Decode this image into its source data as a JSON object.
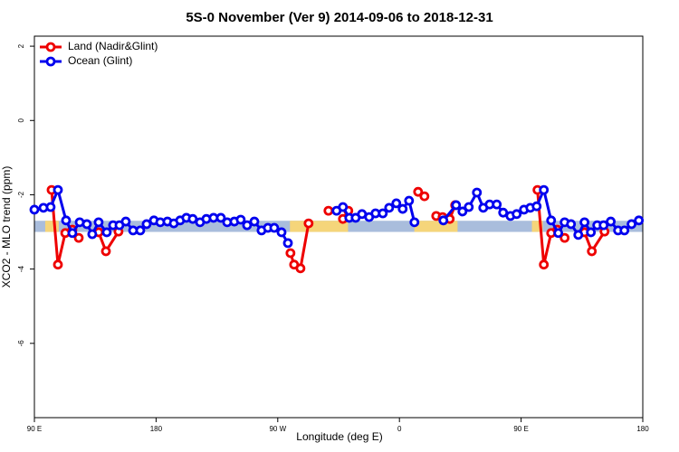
{
  "chart_data": {
    "type": "line",
    "title": "5S-0 November (Ver 9)   2014-09-06 to 2018-12-31",
    "x_label": "Longitude (deg E)",
    "y_label": "XCO2 - MLO trend (ppm)",
    "xlim": [
      90,
      540
    ],
    "xticks": [
      {
        "value": 90,
        "label": "90 E"
      },
      180,
      {
        "value": 270,
        "label": "90 W"
      },
      {
        "value": 360,
        "label": "0"
      },
      {
        "value": 450,
        "label": "90 E"
      },
      {
        "value": 540,
        "label": "180"
      }
    ],
    "ylim": [
      -8,
      2.27
    ],
    "yticks": [
      2,
      0,
      -2,
      -4,
      -6
    ],
    "legend": "top-left",
    "band": {
      "ylim": [
        -3.0,
        -2.7
      ],
      "color": "#a9bddc",
      "highlights": [
        {
          "xlim": [
            98,
            108
          ],
          "color": "#f5d57a"
        },
        {
          "xlim": [
            279,
            322
          ],
          "color": "#f5d57a"
        },
        {
          "xlim": [
            371,
            403
          ],
          "color": "#f5d57a"
        },
        {
          "xlim": [
            458,
            466
          ],
          "color": "#f5d57a"
        }
      ]
    },
    "series": [
      {
        "name": "Land (Nadir&Glint)",
        "color": "#ee0000",
        "x": [
          102.7,
          107.4,
          112.8,
          118.1,
          122.8,
          null,
          137.5,
          142.9,
          152.2,
          null,
          279.4,
          282.1,
          286.8,
          292.8,
          null,
          307.5,
          null,
          318.2,
          322.2,
          null,
          373.8,
          378.5,
          null,
          387.2,
          391.9,
          397.2,
          401.2,
          null,
          462.1,
          466.8,
          472.2,
          476.8,
          482.2,
          null,
          496.9,
          502.3,
          511.7
        ],
        "values": [
          -1.87,
          -3.88,
          -3.03,
          -2.94,
          -3.16,
          null,
          -3.01,
          -3.52,
          -2.99,
          null,
          -3.57,
          -3.88,
          -3.98,
          -2.77,
          null,
          -2.43,
          null,
          -2.65,
          -2.43,
          null,
          -1.92,
          -2.04,
          null,
          -2.57,
          -2.6,
          -2.65,
          -2.28,
          null,
          -1.87,
          -3.88,
          -3.03,
          -2.94,
          -3.16,
          null,
          -3.01,
          -3.52,
          -2.99
        ]
      },
      {
        "name": "Ocean (Glint)",
        "color": "#0000ee",
        "x": [
          90,
          96.7,
          102,
          107.4,
          113.4,
          118.1,
          123.5,
          128.8,
          132.8,
          137.5,
          143.5,
          148.2,
          152.9,
          157.6,
          163,
          168.3,
          173,
          178.4,
          183.1,
          188.4,
          193.1,
          197.8,
          202.4,
          207.1,
          212.5,
          217.2,
          222.5,
          227.9,
          232.6,
          237.9,
          242.6,
          247.3,
          252.7,
          258,
          262.7,
          267.4,
          272.8,
          277.5,
          null,
          313.5,
          318.2,
          322.9,
          327.6,
          332.3,
          337.6,
          342.3,
          347.7,
          352.4,
          357.7,
          362.4,
          367.1,
          371.1,
          null,
          392.5,
          401.9,
          406.6,
          411.3,
          417.3,
          422,
          426.7,
          432,
          436.7,
          442.1,
          446.7,
          452.1,
          456.8,
          461.5,
          466.8,
          472.2,
          477.5,
          482.2,
          486.9,
          492.3,
          496.9,
          501.6,
          506.3,
          511,
          516.3,
          521.7,
          526.4,
          531.7,
          537.1
        ],
        "values": [
          -2.4,
          -2.35,
          -2.33,
          -1.87,
          -2.69,
          -3.03,
          -2.74,
          -2.79,
          -3.06,
          -2.74,
          -3.01,
          -2.82,
          -2.82,
          -2.72,
          -2.96,
          -2.96,
          -2.79,
          -2.69,
          -2.74,
          -2.72,
          -2.77,
          -2.69,
          -2.62,
          -2.65,
          -2.74,
          -2.65,
          -2.62,
          -2.62,
          -2.74,
          -2.72,
          -2.67,
          -2.82,
          -2.72,
          -2.96,
          -2.89,
          -2.89,
          -3.01,
          -3.3,
          null,
          -2.43,
          -2.33,
          -2.62,
          -2.62,
          -2.52,
          -2.6,
          -2.5,
          -2.5,
          -2.35,
          -2.23,
          -2.38,
          -2.16,
          -2.74,
          null,
          -2.69,
          -2.28,
          -2.45,
          -2.33,
          -1.94,
          -2.35,
          -2.26,
          -2.26,
          -2.48,
          -2.57,
          -2.52,
          -2.4,
          -2.35,
          -2.31,
          -1.87,
          -2.69,
          -3.03,
          -2.74,
          -2.79,
          -3.08,
          -2.74,
          -3.01,
          -2.82,
          -2.82,
          -2.72,
          -2.96,
          -2.96,
          -2.79,
          -2.69
        ]
      }
    ]
  }
}
